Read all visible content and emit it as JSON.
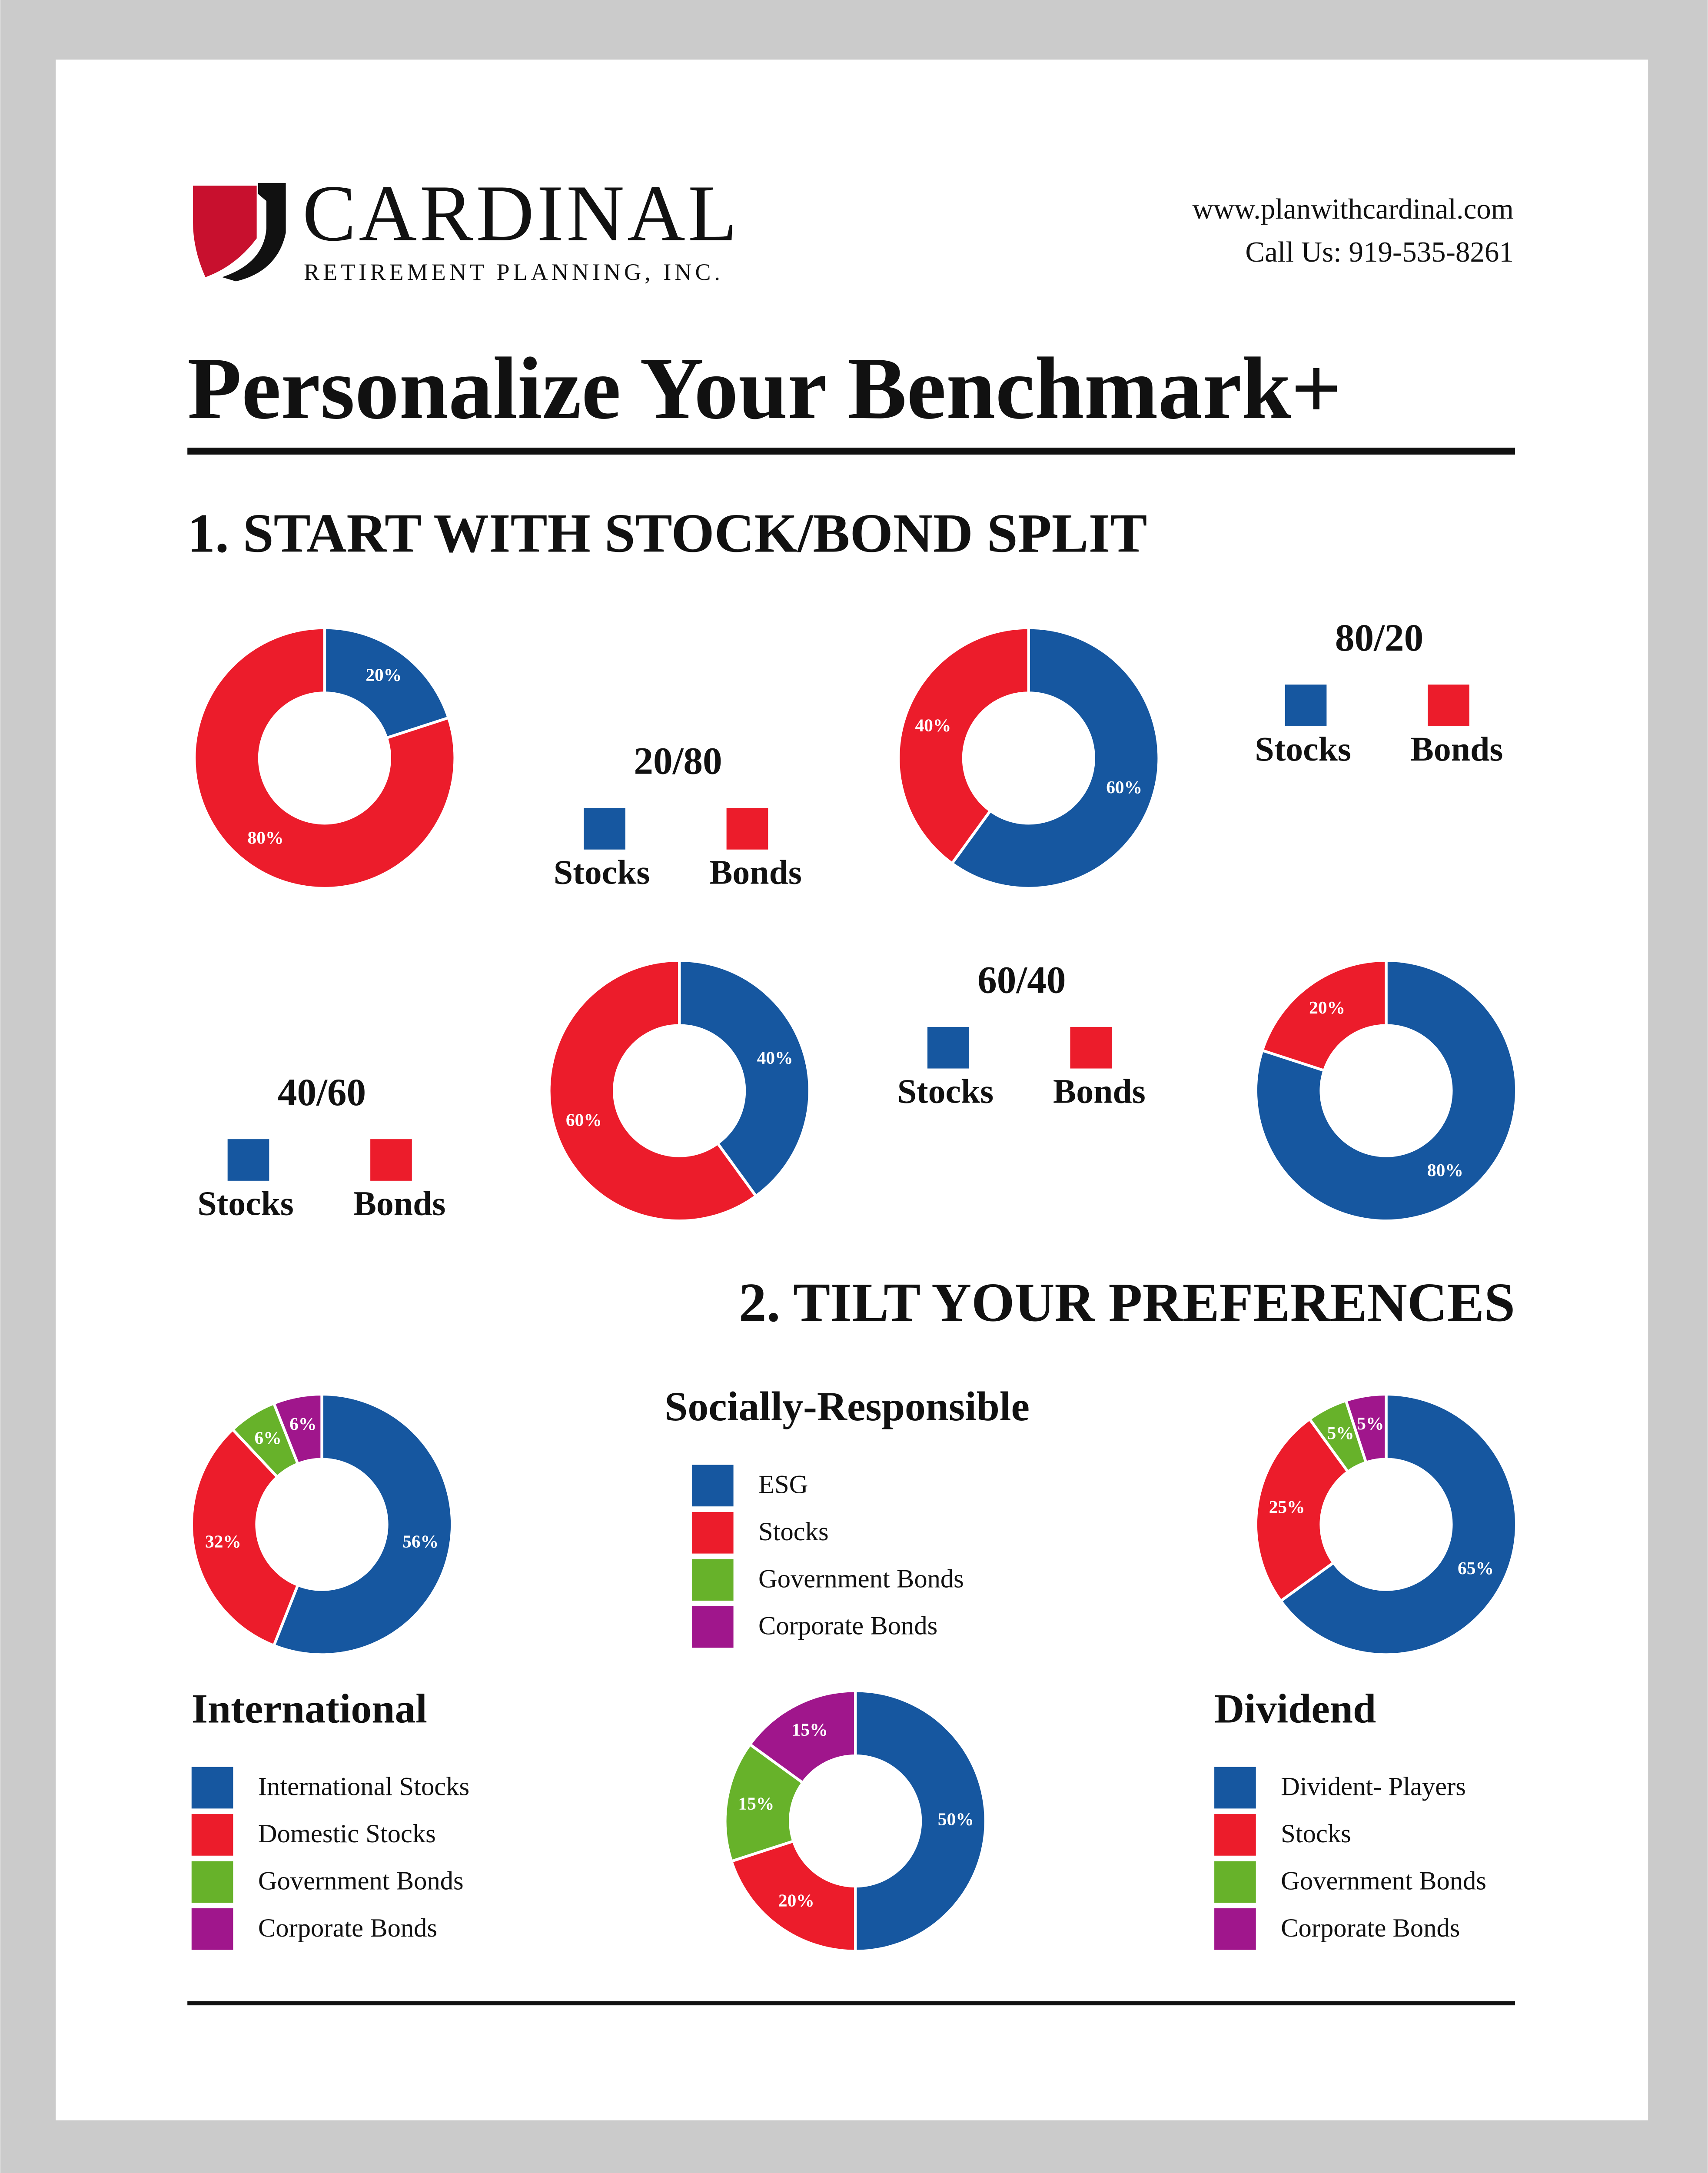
{
  "header": {
    "brand": "CARDINAL",
    "brand_sub": "RETIREMENT PLANNING, INC.",
    "website": "www.planwithcardinal.com",
    "phone": "Call Us: 919-535-8261"
  },
  "title": "Personalize Your Benchmark+",
  "section_1": "1. START WITH STOCK/BOND SPLIT",
  "section_2": "2. TILT YOUR PREFERENCES",
  "chart_data": [
    {
      "type": "donut",
      "title": "20/80",
      "categories": [
        "Stocks",
        "Bonds"
      ],
      "colors": [
        "#1657a0",
        "#ec1c2b"
      ],
      "values": [
        20,
        80
      ],
      "value_labels": [
        "20%",
        "80%"
      ]
    },
    {
      "type": "donut",
      "title": "80/20",
      "categories": [
        "Stocks",
        "Bonds"
      ],
      "colors": [
        "#1657a0",
        "#ec1c2b"
      ],
      "values": [
        80,
        20
      ],
      "value_labels": [
        "80%",
        "20%"
      ]
    },
    {
      "type": "donut",
      "title": "60/40",
      "categories": [
        "Stocks",
        "Bonds"
      ],
      "colors": [
        "#1657a0",
        "#ec1c2b"
      ],
      "values": [
        60,
        40
      ],
      "value_labels": [
        "60%",
        "40%"
      ]
    },
    {
      "type": "donut",
      "title": "40/60",
      "categories": [
        "Stocks",
        "Bonds"
      ],
      "colors": [
        "#1657a0",
        "#ec1c2b"
      ],
      "values": [
        40,
        60
      ],
      "value_labels": [
        "40%",
        "60%"
      ]
    },
    {
      "type": "donut",
      "title": "Socially-Responsible",
      "categories": [
        "ESG",
        "Stocks",
        "Government Bonds",
        "Corporate Bonds"
      ],
      "colors": [
        "#1657a0",
        "#ec1c2b",
        "#67b22a",
        "#a0168c"
      ],
      "values": [
        50,
        20,
        15,
        15
      ],
      "value_labels": [
        "50%",
        "20%",
        "15%",
        "15%"
      ]
    },
    {
      "type": "donut",
      "title": "International",
      "categories": [
        "International Stocks",
        "Domestic Stocks",
        "Government Bonds",
        "Corporate Bonds"
      ],
      "colors": [
        "#1657a0",
        "#ec1c2b",
        "#67b22a",
        "#a0168c"
      ],
      "values": [
        56,
        32,
        6,
        6
      ],
      "value_labels": [
        "56%",
        "32%",
        "6%",
        "6%"
      ]
    },
    {
      "type": "donut",
      "title": "Dividend",
      "categories": [
        "Divident- Players",
        "Stocks",
        "Government Bonds",
        "Corporate Bonds"
      ],
      "colors": [
        "#1657a0",
        "#ec1c2b",
        "#67b22a",
        "#a0168c"
      ],
      "values": [
        65,
        25,
        5,
        5
      ],
      "value_labels": [
        "65%",
        "25%",
        "5%",
        "5%"
      ]
    }
  ]
}
